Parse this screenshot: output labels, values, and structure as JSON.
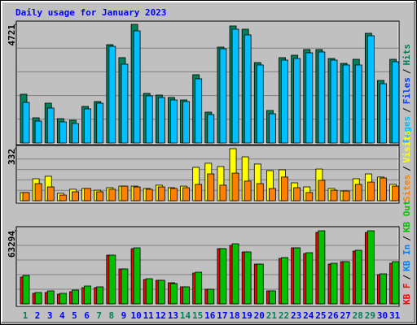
{
  "chart_data": {
    "type": "bar",
    "title": "Daily usage for January 2023",
    "categories": [
      "1",
      "2",
      "3",
      "4",
      "5",
      "6",
      "7",
      "8",
      "9",
      "10",
      "11",
      "12",
      "13",
      "14",
      "15",
      "16",
      "17",
      "18",
      "19",
      "20",
      "21",
      "22",
      "23",
      "24",
      "25",
      "26",
      "27",
      "28",
      "29",
      "30",
      "31"
    ],
    "label_color": "#0000ff",
    "weekend_label_color": "#00805c",
    "weekends": [
      0,
      6,
      7,
      13,
      14,
      20,
      21,
      27,
      28
    ],
    "legend_separator": "/",
    "grid": true,
    "panels": [
      {
        "ylim": [
          0,
          4721
        ],
        "yticks": [
          4721
        ],
        "legend_direction": "reverse",
        "series": [
          {
            "name": "Hits",
            "color": "#00805c",
            "values": [
              1940,
              1003,
              1585,
              970,
              906,
              1455,
              1649,
              3913,
              3396,
              4721,
              1973,
              1908,
              1811,
              1714,
              2717,
              1229,
              3816,
              4657,
              4528,
              3202,
              1294,
              3396,
              3493,
              3719,
              3719,
              3363,
              3169,
              3331,
              4366,
              2490,
              3331
            ]
          },
          {
            "name": "Files",
            "color": "#0040ff"
          },
          {
            "name": "Pages",
            "color": "#00c0ff",
            "values": [
              1617,
              873,
              1391,
              841,
              776,
              1358,
              1585,
              3848,
              3137,
              4463,
              1876,
              1811,
              1714,
              1649,
              2555,
              1132,
              3751,
              4528,
              4301,
              3105,
              1164,
              3299,
              3363,
              3590,
              3622,
              3299,
              3105,
              3105,
              4269,
              2361,
              3234
            ]
          }
        ]
      },
      {
        "ylim": [
          0,
          332
        ],
        "yticks": [
          332
        ],
        "legend_direction": "reverse",
        "series": [
          {
            "name": "Visits",
            "color": "#ffff00",
            "values": [
              52,
              140,
              156,
              47,
              73,
              78,
              67,
              83,
              93,
              93,
              78,
              99,
              83,
              93,
              213,
              239,
              218,
              332,
              280,
              234,
              192,
              197,
              114,
              88,
              202,
              78,
              62,
              140,
              171,
              151,
              104
            ]
          },
          {
            "name": "Sites",
            "color": "#ff8000",
            "values": [
              52,
              109,
              88,
              36,
              57,
              78,
              57,
              73,
              93,
              88,
              73,
              88,
              78,
              83,
              104,
              171,
              99,
              176,
              125,
              109,
              78,
              151,
              83,
              52,
              130,
              67,
              62,
              104,
              119,
              145,
              93
            ]
          }
        ]
      },
      {
        "ylim": [
          0,
          63294
        ],
        "yticks": [
          63294
        ],
        "legend_direction": "forward",
        "series": [
          {
            "name": "KB F",
            "color": "#ff0000",
            "values": [
              23199,
              9139,
              9842,
              8436,
              10545,
              14060,
              14060,
              42180,
              30229,
              47804,
              21090,
              20387,
              18278,
              14763,
              26714,
              12654,
              47804,
              50616,
              44992,
              34447,
              11248,
              39368,
              48507,
              43586,
              61864,
              34447,
              36556,
              45695,
              61864,
              25308,
              35150
            ]
          },
          {
            "name": "KB In",
            "color": "#0080ff"
          },
          {
            "name": "KB Out",
            "color": "#00c000",
            "values": [
              24605,
              9842,
              11248,
              9139,
              11951,
              15466,
              14763,
              42180,
              30229,
              48507,
              21793,
              20387,
              17575,
              14763,
              27417,
              12654,
              47804,
              52022,
              44992,
              34447,
              11248,
              40071,
              48507,
              44289,
              63294,
              35150,
              36556,
              46398,
              63294,
              26011,
              36556
            ]
          }
        ]
      }
    ]
  }
}
